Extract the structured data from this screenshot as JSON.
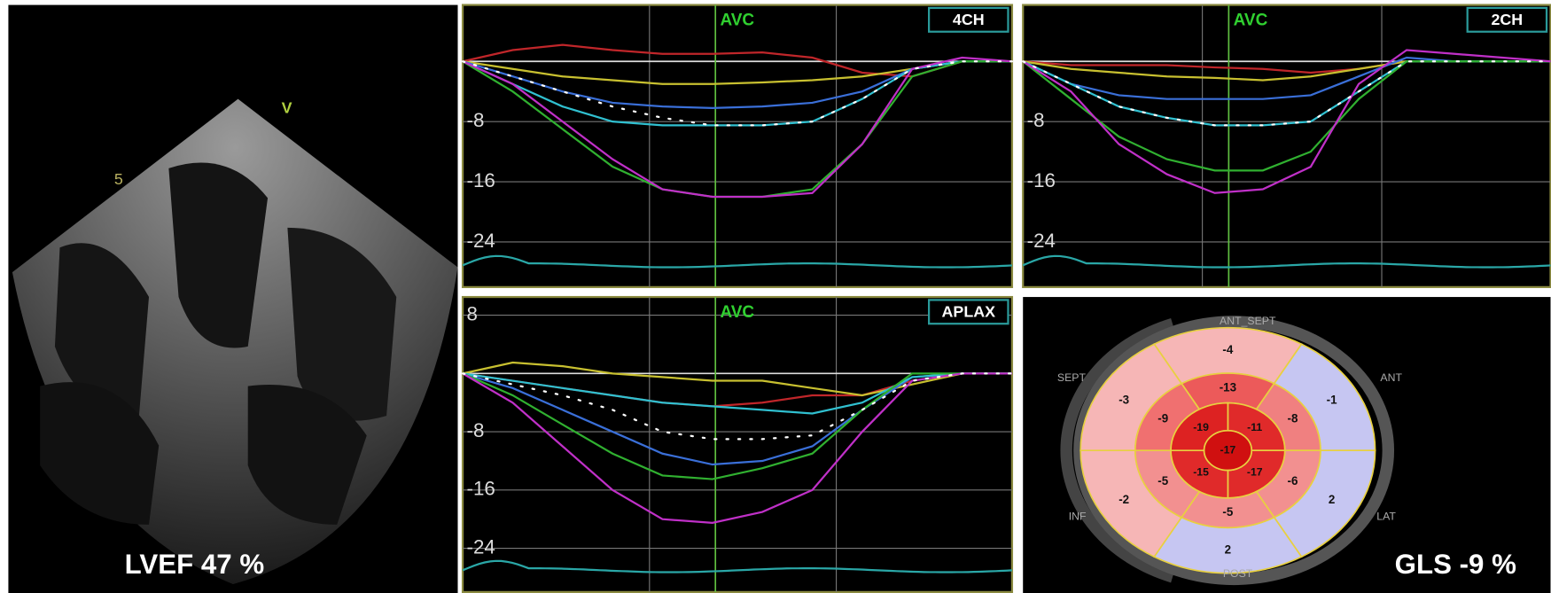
{
  "echo": {
    "depth_mark": "5",
    "marker": "V",
    "caption": "LVEF 47 %"
  },
  "chart_data": [
    {
      "type": "line",
      "view_label": "4CH",
      "annotation": "AVC",
      "ylim": [
        -30,
        7.5
      ],
      "yticks": [
        -8,
        -16,
        -24
      ],
      "series": [
        {
          "color": "#c0262a",
          "values": [
            0,
            1.5,
            2.2,
            1.5,
            1,
            1,
            1.2,
            0.5,
            -1.5,
            -2,
            0,
            0
          ]
        },
        {
          "color": "#c8c030",
          "values": [
            0,
            -1,
            -2,
            -2.5,
            -3,
            -3,
            -2.8,
            -2.5,
            -2,
            -1,
            0,
            0
          ]
        },
        {
          "color": "#3a6fd8",
          "values": [
            0,
            -2,
            -4,
            -5.5,
            -6,
            -6.2,
            -6,
            -5.5,
            -4,
            -1,
            0,
            0
          ]
        },
        {
          "color": "#30c0d0",
          "values": [
            0,
            -3,
            -6,
            -8,
            -8.5,
            -8.5,
            -8.5,
            -8,
            -5,
            -1,
            0,
            0
          ]
        },
        {
          "color": "#30b030",
          "values": [
            0,
            -4,
            -9,
            -14,
            -17,
            -18,
            -18,
            -17,
            -11,
            -2,
            0,
            0
          ]
        },
        {
          "color": "#c030c8",
          "values": [
            0,
            -3,
            -8,
            -13,
            -17,
            -18,
            -18,
            -17.5,
            -11,
            -1,
            0.5,
            0
          ]
        },
        {
          "color": "#ffffff",
          "line_style": "dotted",
          "values": [
            0,
            -2,
            -4,
            -6,
            -7.5,
            -8.5,
            -8.5,
            -8,
            -5,
            -1,
            0,
            0
          ]
        }
      ]
    },
    {
      "type": "line",
      "view_label": "2CH",
      "annotation": "AVC",
      "ylim": [
        -30,
        7.5
      ],
      "yticks": [
        -8,
        -16,
        -24
      ],
      "series": [
        {
          "color": "#c0262a",
          "values": [
            0,
            -0.5,
            -0.5,
            -0.5,
            -0.8,
            -1,
            -1.5,
            -1,
            0,
            0,
            0,
            0
          ]
        },
        {
          "color": "#c8c030",
          "values": [
            0,
            -1,
            -1.5,
            -2,
            -2.2,
            -2.5,
            -2,
            -1,
            0,
            0,
            0,
            0
          ]
        },
        {
          "color": "#3a6fd8",
          "values": [
            0,
            -3,
            -4.5,
            -5,
            -5,
            -5,
            -4.5,
            -2,
            0.5,
            0,
            0,
            0
          ]
        },
        {
          "color": "#30c0d0",
          "values": [
            0,
            -3,
            -6,
            -7.5,
            -8.5,
            -8.5,
            -8,
            -4,
            0,
            0,
            0,
            0
          ]
        },
        {
          "color": "#30b030",
          "values": [
            0,
            -5,
            -10,
            -13,
            -14.5,
            -14.5,
            -12,
            -5,
            0,
            0,
            0,
            0
          ]
        },
        {
          "color": "#c030c8",
          "values": [
            0,
            -4,
            -11,
            -15,
            -17.5,
            -17,
            -14,
            -3,
            1.5,
            1,
            0.5,
            0
          ]
        },
        {
          "color": "#ffffff",
          "line_style": "dotted",
          "values": [
            0,
            -3,
            -6,
            -7.5,
            -8.5,
            -8.5,
            -8,
            -4,
            0,
            0,
            0,
            0
          ]
        }
      ]
    },
    {
      "type": "line",
      "view_label": "APLAX",
      "annotation": "AVC",
      "ylim": [
        -30,
        10.5
      ],
      "yticks": [
        8,
        -8,
        -16,
        -24
      ],
      "series": [
        {
          "color": "#c0262a",
          "values": [
            0,
            -1,
            -2,
            -3,
            -4,
            -4.5,
            -4,
            -3,
            -3,
            -1,
            0,
            0
          ]
        },
        {
          "color": "#c8c030",
          "values": [
            0,
            1.5,
            1,
            0,
            -0.5,
            -1,
            -1,
            -2,
            -3,
            -1.5,
            0,
            0
          ]
        },
        {
          "color": "#3a6fd8",
          "values": [
            0,
            -2,
            -5,
            -8,
            -11,
            -12.5,
            -12,
            -10,
            -5,
            -0.5,
            0,
            0
          ]
        },
        {
          "color": "#30c0d0",
          "values": [
            0,
            -1,
            -2,
            -3,
            -4,
            -4.5,
            -5,
            -5.5,
            -4,
            -0.5,
            0,
            0
          ]
        },
        {
          "color": "#30b030",
          "values": [
            0,
            -3,
            -7,
            -11,
            -14,
            -14.5,
            -13,
            -11,
            -5,
            0,
            0,
            0
          ]
        },
        {
          "color": "#c030c8",
          "values": [
            0,
            -4,
            -10,
            -16,
            -20,
            -20.5,
            -19,
            -16,
            -8,
            -1,
            0,
            0
          ]
        },
        {
          "color": "#ffffff",
          "line_style": "dotted",
          "values": [
            0,
            -1.5,
            -3,
            -5,
            -8,
            -9,
            -9,
            -8.5,
            -5,
            -1,
            0,
            0
          ]
        }
      ]
    }
  ],
  "bullseye": {
    "basal": [
      {
        "label": "ANT_SEPT",
        "value": -4,
        "color": "#f6b6b6"
      },
      {
        "label": "ANT",
        "value": -1,
        "color": "#c6c6f2"
      },
      {
        "label": "LAT",
        "value": 2,
        "color": "#c6c6f2"
      },
      {
        "label": "POST",
        "value": 2,
        "color": "#c6c6f2"
      },
      {
        "label": "INF",
        "value": -2,
        "color": "#f6b6b6"
      },
      {
        "label": "SEPT",
        "value": -3,
        "color": "#f6b6b6"
      }
    ],
    "mid": [
      {
        "value": -13,
        "color": "#ec5a5a"
      },
      {
        "value": -8,
        "color": "#f08080"
      },
      {
        "value": -6,
        "color": "#f29090"
      },
      {
        "value": -5,
        "color": "#f29090"
      },
      {
        "value": -5,
        "color": "#f29090"
      },
      {
        "value": -9,
        "color": "#f07070"
      }
    ],
    "apical": [
      {
        "value": -11,
        "color": "#e02a2a"
      },
      {
        "value": -17,
        "color": "#e02a2a"
      },
      {
        "value": -15,
        "color": "#e02a2a"
      },
      {
        "value": -19,
        "color": "#dd2222"
      }
    ],
    "apex": {
      "value": -17,
      "color": "#d01010"
    }
  },
  "gls_caption": "GLS -9 %"
}
